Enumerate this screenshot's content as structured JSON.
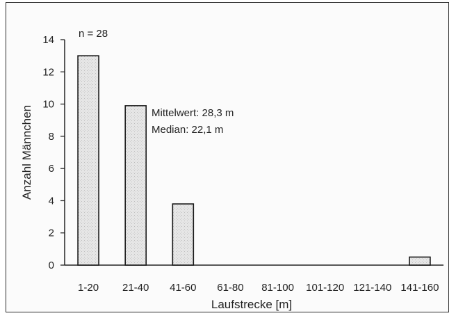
{
  "chart_data": {
    "type": "bar",
    "categories": [
      "1-20",
      "21-40",
      "41-60",
      "61-80",
      "81-100",
      "101-120",
      "121-140",
      "141-160"
    ],
    "values": [
      13,
      9.9,
      3.8,
      0,
      0,
      0,
      0,
      0.5
    ],
    "xlabel": "Laufstrecke [m]",
    "ylabel": "Anzahl Männchen",
    "ylim": [
      0,
      14
    ],
    "yticks": [
      0,
      2,
      4,
      6,
      8,
      10,
      12,
      14
    ],
    "grid": false,
    "annotations": {
      "n": "n = 28",
      "mean": "Mittelwert: 28,3 m",
      "median": "Median: 22,1 m"
    },
    "bar_fill": "#e4e4e4",
    "bar_stroke": "#1a1a1a"
  }
}
